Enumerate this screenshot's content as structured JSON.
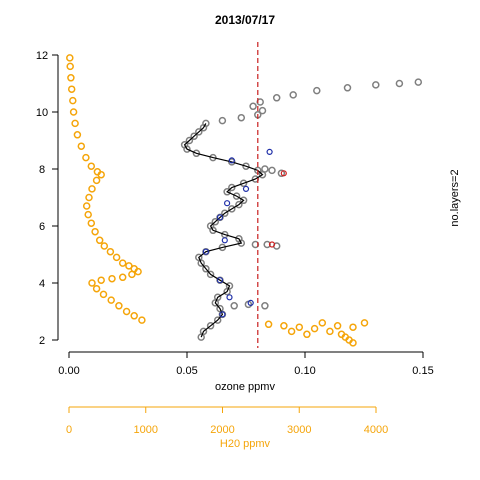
{
  "chart_data": {
    "type": "scatter",
    "title": "2013/07/17",
    "xlabel": "ozone ppmv",
    "ylabel": "",
    "secondary_xlabel": "H20 ppmv",
    "right_label": "no.layers=2",
    "xlim": [
      0,
      0.15
    ],
    "ylim": [
      2,
      12
    ],
    "x_ticks": [
      "0.00",
      "0.05",
      "0.10",
      "0.15"
    ],
    "y_ticks": [
      "2",
      "4",
      "6",
      "8",
      "10",
      "12"
    ],
    "h2o_xlim": [
      0,
      4000
    ],
    "h2o_ticks": [
      "0",
      "1000",
      "2000",
      "3000",
      "4000"
    ],
    "threshold_ozone": 0.08,
    "colors": {
      "ozone_points": "#7f7f7f",
      "h2o_points": "#f5a50a",
      "smooth_line": "#000000",
      "layer_markers": "#1f2fa8",
      "threshold_markers": "#d02020",
      "threshold_line": "#c81e1e"
    },
    "series": [
      {
        "kind": "ozone_profile",
        "points": [
          [
            0.056,
            2.1
          ],
          [
            0.057,
            2.3
          ],
          [
            0.06,
            2.5
          ],
          [
            0.063,
            2.7
          ],
          [
            0.065,
            2.9
          ],
          [
            0.064,
            3.1
          ],
          [
            0.062,
            3.3
          ],
          [
            0.063,
            3.5
          ],
          [
            0.067,
            3.7
          ],
          [
            0.068,
            3.9
          ],
          [
            0.064,
            4.1
          ],
          [
            0.06,
            4.3
          ],
          [
            0.058,
            4.5
          ],
          [
            0.056,
            4.7
          ],
          [
            0.055,
            4.9
          ],
          [
            0.058,
            5.1
          ],
          [
            0.065,
            5.25
          ],
          [
            0.073,
            5.4
          ],
          [
            0.072,
            5.55
          ],
          [
            0.066,
            5.7
          ],
          [
            0.061,
            5.85
          ],
          [
            0.06,
            6.0
          ],
          [
            0.062,
            6.15
          ],
          [
            0.064,
            6.3
          ],
          [
            0.066,
            6.45
          ],
          [
            0.069,
            6.6
          ],
          [
            0.072,
            6.75
          ],
          [
            0.074,
            6.9
          ],
          [
            0.071,
            7.05
          ],
          [
            0.067,
            7.2
          ],
          [
            0.069,
            7.35
          ],
          [
            0.074,
            7.5
          ],
          [
            0.079,
            7.65
          ],
          [
            0.082,
            7.8
          ],
          [
            0.08,
            7.95
          ],
          [
            0.075,
            8.1
          ],
          [
            0.069,
            8.25
          ],
          [
            0.061,
            8.4
          ],
          [
            0.054,
            8.55
          ],
          [
            0.05,
            8.7
          ],
          [
            0.049,
            8.85
          ],
          [
            0.051,
            9.0
          ],
          [
            0.053,
            9.15
          ],
          [
            0.055,
            9.3
          ],
          [
            0.057,
            9.45
          ],
          [
            0.058,
            9.6
          ],
          [
            0.065,
            9.7
          ],
          [
            0.073,
            9.8
          ],
          [
            0.08,
            9.9
          ],
          [
            0.082,
            10.05
          ],
          [
            0.078,
            10.2
          ],
          [
            0.081,
            10.35
          ],
          [
            0.088,
            10.5
          ],
          [
            0.095,
            10.6
          ],
          [
            0.105,
            10.75
          ],
          [
            0.118,
            10.85
          ],
          [
            0.13,
            10.95
          ],
          [
            0.14,
            11.0
          ],
          [
            0.148,
            11.05
          ],
          [
            0.083,
            3.2
          ],
          [
            0.076,
            3.25
          ],
          [
            0.07,
            3.2
          ],
          [
            0.079,
            5.35
          ],
          [
            0.084,
            5.35
          ],
          [
            0.088,
            5.3
          ],
          [
            0.086,
            7.95
          ],
          [
            0.083,
            8.0
          ],
          [
            0.09,
            7.85
          ]
        ]
      },
      {
        "kind": "h2o_profile",
        "points": [
          [
            10,
            11.9
          ],
          [
            15,
            11.6
          ],
          [
            25,
            11.2
          ],
          [
            35,
            10.8
          ],
          [
            50,
            10.4
          ],
          [
            60,
            10.0
          ],
          [
            80,
            9.6
          ],
          [
            110,
            9.2
          ],
          [
            160,
            8.8
          ],
          [
            220,
            8.4
          ],
          [
            290,
            8.1
          ],
          [
            370,
            7.9
          ],
          [
            420,
            7.8
          ],
          [
            360,
            7.6
          ],
          [
            300,
            7.3
          ],
          [
            260,
            7.0
          ],
          [
            230,
            6.7
          ],
          [
            250,
            6.4
          ],
          [
            290,
            6.1
          ],
          [
            340,
            5.8
          ],
          [
            400,
            5.5
          ],
          [
            460,
            5.3
          ],
          [
            540,
            5.1
          ],
          [
            620,
            4.9
          ],
          [
            700,
            4.7
          ],
          [
            780,
            4.6
          ],
          [
            850,
            4.5
          ],
          [
            900,
            4.4
          ],
          [
            820,
            4.3
          ],
          [
            700,
            4.2
          ],
          [
            560,
            4.15
          ],
          [
            420,
            4.1
          ],
          [
            300,
            4.0
          ],
          [
            360,
            3.8
          ],
          [
            450,
            3.6
          ],
          [
            550,
            3.4
          ],
          [
            650,
            3.2
          ],
          [
            750,
            3.0
          ],
          [
            850,
            2.85
          ],
          [
            950,
            2.7
          ],
          [
            2600,
            2.55
          ],
          [
            2800,
            2.5
          ],
          [
            3000,
            2.45
          ],
          [
            3200,
            2.4
          ],
          [
            3400,
            2.3
          ],
          [
            3550,
            2.2
          ],
          [
            3600,
            2.1
          ],
          [
            3650,
            2.0
          ],
          [
            3700,
            1.9
          ],
          [
            2900,
            2.3
          ],
          [
            3100,
            2.2
          ],
          [
            3300,
            2.6
          ],
          [
            3500,
            2.5
          ],
          [
            3700,
            2.45
          ],
          [
            3850,
            2.6
          ]
        ]
      },
      {
        "kind": "layer_markers",
        "points": [
          [
            0.065,
            2.9
          ],
          [
            0.068,
            3.5
          ],
          [
            0.064,
            4.1
          ],
          [
            0.058,
            5.1
          ],
          [
            0.066,
            5.5
          ],
          [
            0.064,
            6.3
          ],
          [
            0.067,
            6.8
          ],
          [
            0.075,
            7.3
          ],
          [
            0.069,
            8.3
          ],
          [
            0.077,
            3.3
          ],
          [
            0.085,
            8.6
          ]
        ]
      },
      {
        "kind": "threshold_markers",
        "points": [
          [
            0.086,
            5.35
          ],
          [
            0.091,
            7.85
          ]
        ]
      }
    ]
  }
}
